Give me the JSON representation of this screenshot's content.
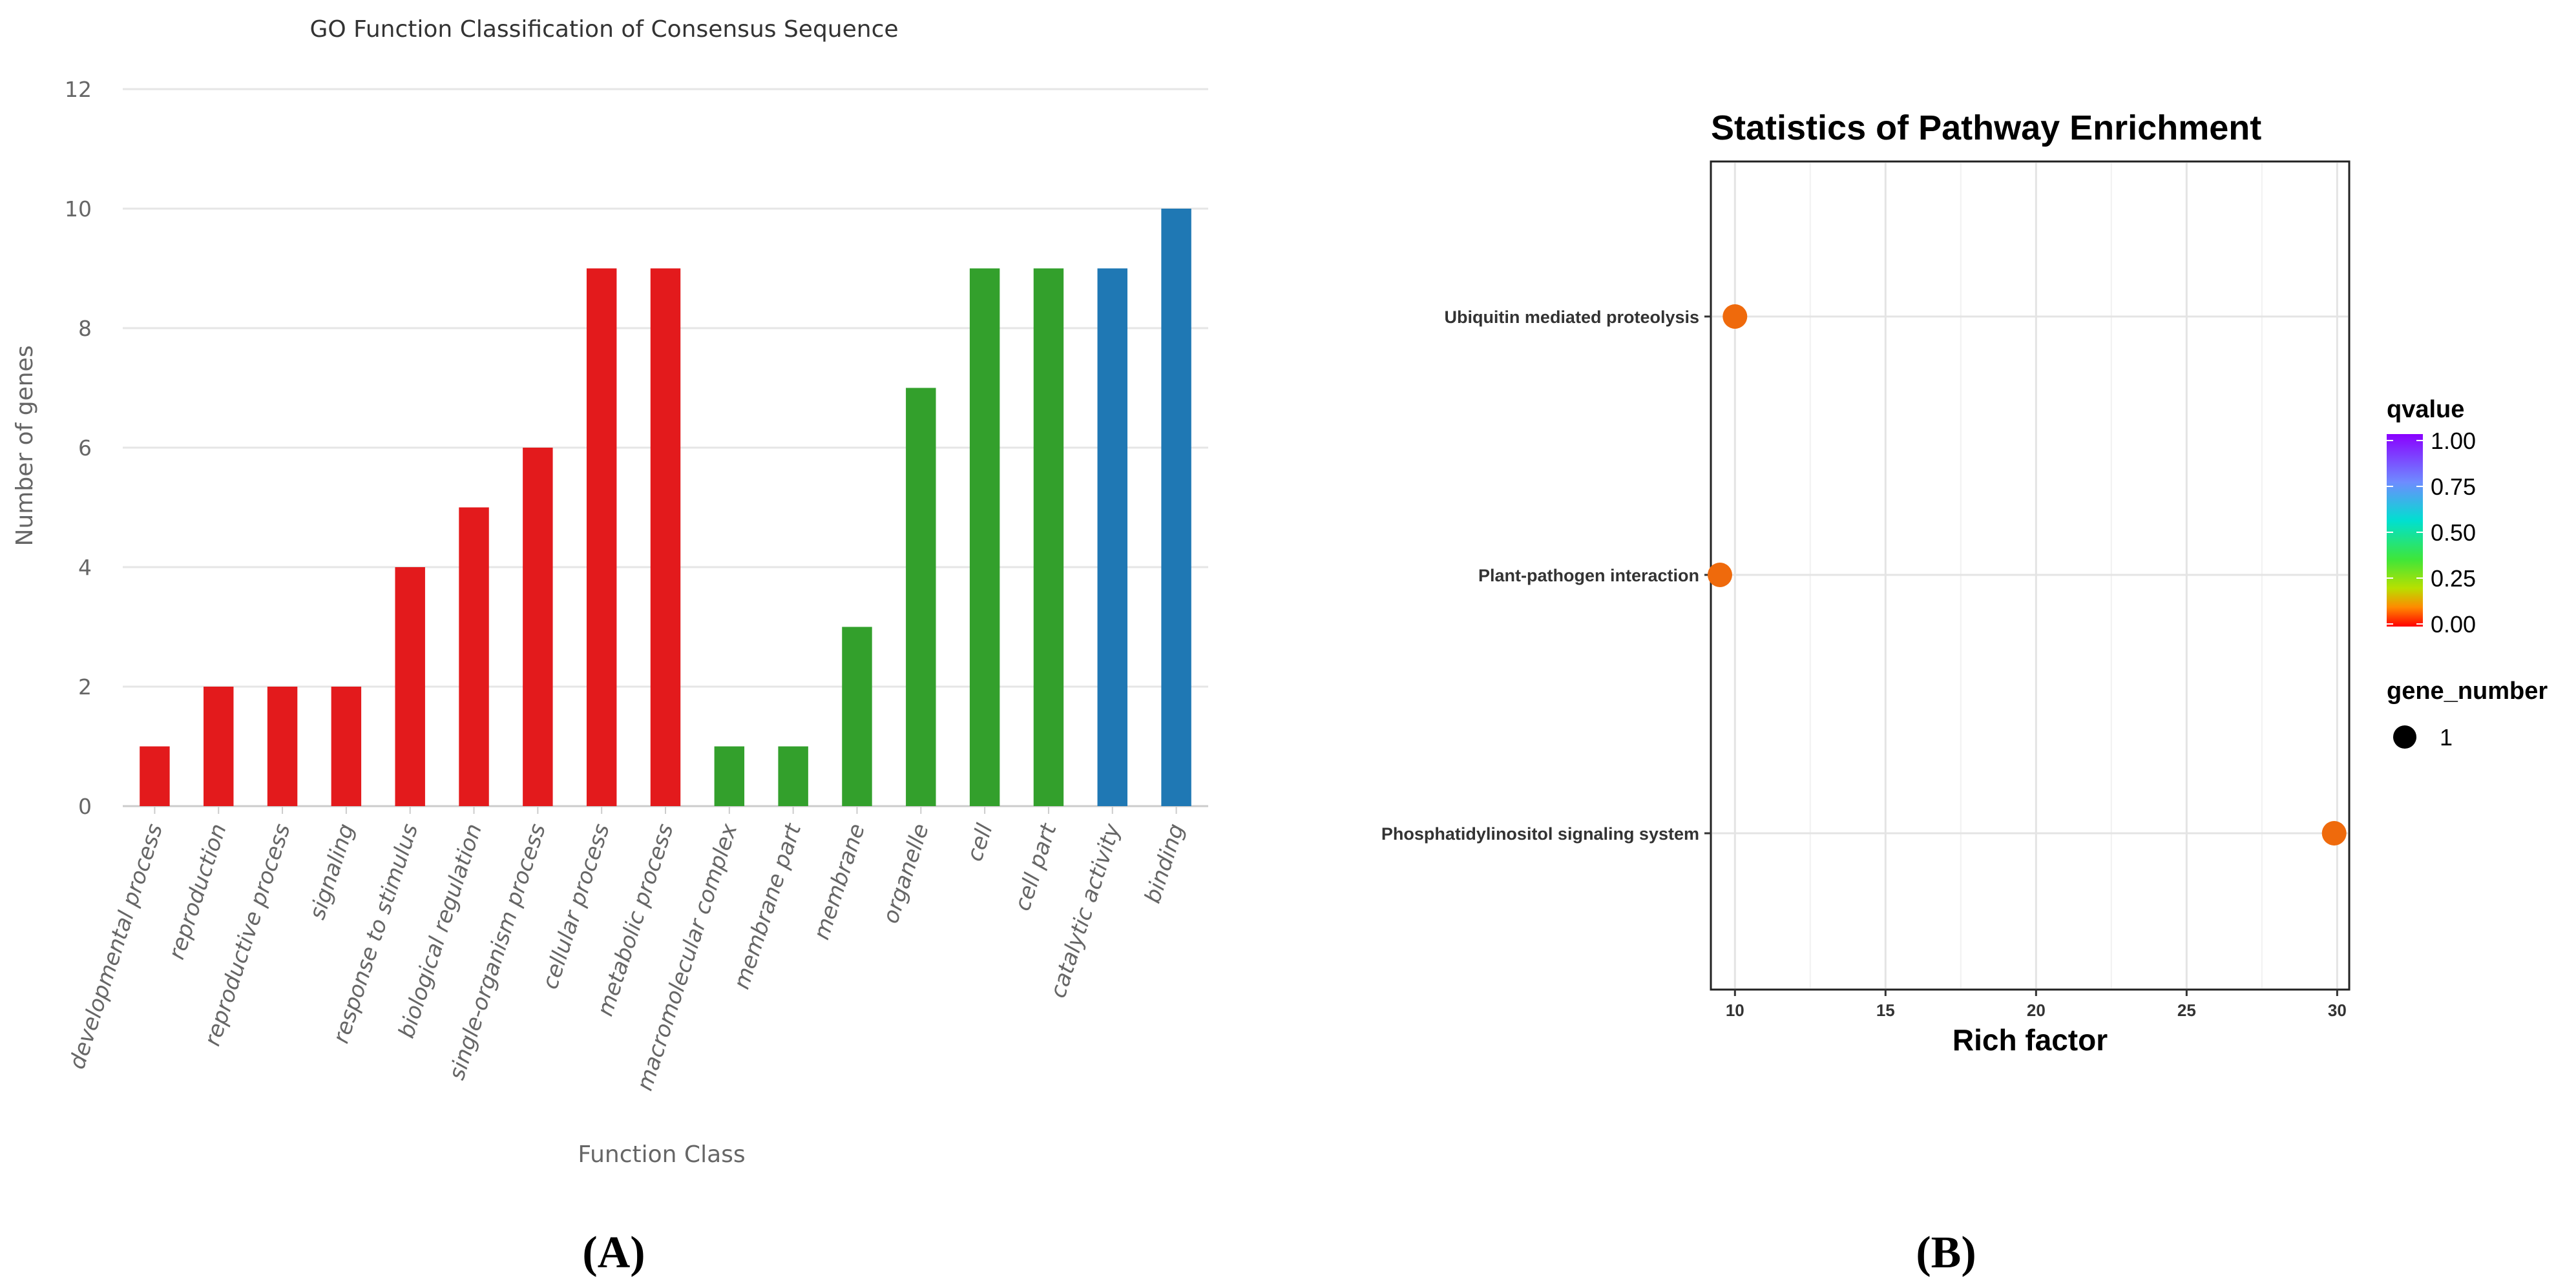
{
  "chart_data": [
    {
      "panel_label": "(A)",
      "type": "bar",
      "title": "GO Function Classification of Consensus Sequence",
      "xlabel": "Function Class",
      "ylabel": "Number of genes",
      "ylim": [
        0,
        12
      ],
      "yticks": [
        0,
        2,
        4,
        6,
        8,
        10,
        12
      ],
      "grid": true,
      "categories": [
        "developmental process",
        "reproduction",
        "reproductive process",
        "signaling",
        "response to stimulus",
        "biological regulation",
        "single-organism process",
        "cellular process",
        "metabolic process",
        "macromolecular complex",
        "membrane part",
        "membrane",
        "organelle",
        "cell",
        "cell part",
        "catalytic activity",
        "binding"
      ],
      "values": [
        1,
        2,
        2,
        2,
        4,
        5,
        6,
        9,
        9,
        1,
        1,
        3,
        7,
        9,
        9,
        9,
        10
      ],
      "group_colors": [
        "#e31a1c",
        "#e31a1c",
        "#e31a1c",
        "#e31a1c",
        "#e31a1c",
        "#e31a1c",
        "#e31a1c",
        "#e31a1c",
        "#e31a1c",
        "#33a02c",
        "#33a02c",
        "#33a02c",
        "#33a02c",
        "#33a02c",
        "#33a02c",
        "#1f78b4",
        "#1f78b4"
      ]
    },
    {
      "panel_label": "(B)",
      "type": "scatter",
      "title": "Statistics of Pathway Enrichment",
      "xlabel": "Rich factor",
      "xlim": [
        9.2,
        30.4
      ],
      "xticks": [
        10,
        15,
        20,
        25,
        30
      ],
      "categories": [
        "Ubiquitin mediated proteolysis",
        "Plant-pathogen interaction",
        "Phosphatidylinositol signaling system"
      ],
      "points": [
        {
          "pathway": "Ubiquitin mediated proteolysis",
          "rich_factor": 10,
          "qvalue": 0.1,
          "gene_number": 1
        },
        {
          "pathway": "Plant-pathogen interaction",
          "rich_factor": 9.5,
          "qvalue": 0.1,
          "gene_number": 1
        },
        {
          "pathway": "Phosphatidylinositol signaling system",
          "rich_factor": 29.9,
          "qvalue": 0.1,
          "gene_number": 1
        }
      ],
      "point_color": "#ef6a0c",
      "legend": {
        "color_title": "qvalue",
        "color_ticks": [
          "1.00",
          "0.75",
          "0.50",
          "0.25",
          "0.00"
        ],
        "size_title": "gene_number",
        "size_ticks": [
          "1"
        ],
        "placement": "right"
      }
    }
  ]
}
